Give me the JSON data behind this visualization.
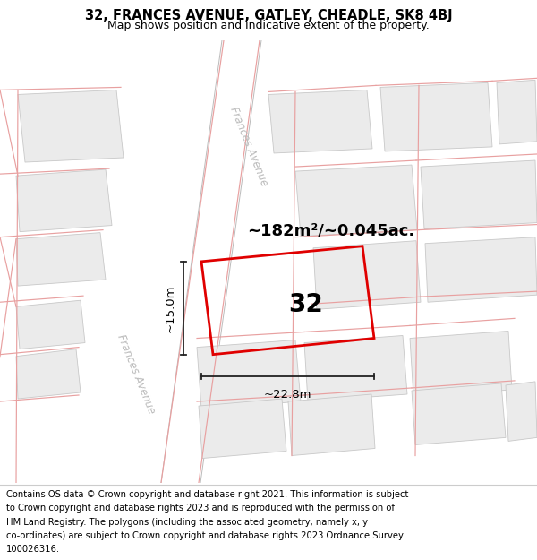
{
  "title": "32, FRANCES AVENUE, GATLEY, CHEADLE, SK8 4BJ",
  "subtitle": "Map shows position and indicative extent of the property.",
  "area_label": "~182m²/~0.045ac.",
  "width_label": "~22.8m",
  "height_label": "~15.0m",
  "house_number": "32",
  "street_label_1": "Frances Avenue",
  "street_label_2": "Frances Avenue",
  "bg_color": "#f7f7f7",
  "building_fill": "#ebebeb",
  "building_stroke": "#c8c8c8",
  "pink_line_color": "#e8a0a0",
  "red_polygon_color": "#e00000",
  "measure_color": "#222222",
  "road_fill": "#ffffff",
  "road_edge": "#cccccc",
  "title_fontsize": 10.5,
  "subtitle_fontsize": 9,
  "footer_fontsize": 7.2,
  "footer_lines": [
    "Contains OS data © Crown copyright and database right 2021. This information is subject",
    "to Crown copyright and database rights 2023 and is reproduced with the permission of",
    "HM Land Registry. The polygons (including the associated geometry, namely x, y",
    "co-ordinates) are subject to Crown copyright and database rights 2023 Ordnance Survey",
    "100026316."
  ]
}
